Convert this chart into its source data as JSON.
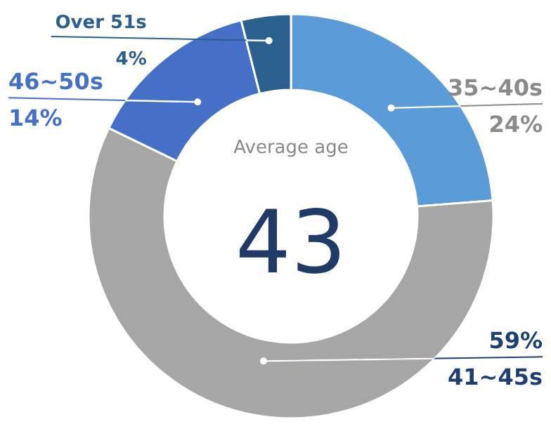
{
  "chart_data": {
    "type": "donut",
    "categories": [
      "35~40s",
      "41~45s",
      "46~50s",
      "Over 51s"
    ],
    "values": [
      24,
      59,
      14,
      4
    ],
    "colors": [
      "#5b9bd8",
      "#a6a6a6",
      "#4470c8",
      "#2a5f8e"
    ],
    "value_labels": [
      "24%",
      "59%",
      "14%",
      "4%"
    ],
    "annotations": [
      "Average age",
      "43"
    ]
  }
}
